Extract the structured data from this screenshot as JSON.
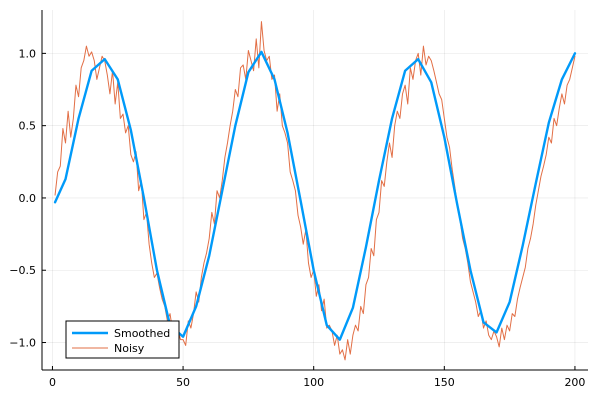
{
  "chart_data": {
    "type": "line",
    "title": "",
    "xlabel": "",
    "ylabel": "",
    "xlim": [
      -4,
      205
    ],
    "ylim": [
      -1.19,
      1.3
    ],
    "x_ticks": [
      0,
      50,
      100,
      150,
      200
    ],
    "x_tick_labels": [
      "0",
      "50",
      "100",
      "150",
      "200"
    ],
    "y_ticks": [
      -1.0,
      -0.5,
      0.0,
      0.5,
      1.0
    ],
    "y_tick_labels": [
      "−1.0",
      "−0.5",
      "0.0",
      "0.5",
      "1.0"
    ],
    "grid": true,
    "legend_position": "bottom-left",
    "series": [
      {
        "name": "Smoothed",
        "color": "#009af9",
        "x": [
          1,
          5,
          10,
          15,
          20,
          25,
          30,
          35,
          40,
          45,
          50,
          55,
          60,
          65,
          70,
          75,
          80,
          85,
          90,
          95,
          100,
          105,
          110,
          115,
          120,
          125,
          130,
          135,
          140,
          145,
          150,
          155,
          160,
          165,
          170,
          175,
          180,
          185,
          190,
          195,
          200
        ],
        "y": [
          -0.03,
          0.13,
          0.55,
          0.88,
          0.96,
          0.82,
          0.47,
          0.0,
          -0.5,
          -0.88,
          -0.96,
          -0.75,
          -0.4,
          0.05,
          0.5,
          0.87,
          1.01,
          0.82,
          0.45,
          -0.02,
          -0.5,
          -0.88,
          -0.98,
          -0.76,
          -0.34,
          0.12,
          0.55,
          0.88,
          0.96,
          0.8,
          0.42,
          -0.05,
          -0.5,
          -0.86,
          -0.93,
          -0.72,
          -0.33,
          0.1,
          0.52,
          0.82,
          1.0
        ]
      },
      {
        "name": "Noisy",
        "color": "#e26f46",
        "x": [
          1,
          2,
          3,
          4,
          5,
          6,
          7,
          8,
          9,
          10,
          11,
          12,
          13,
          14,
          15,
          16,
          17,
          18,
          19,
          20,
          21,
          22,
          23,
          24,
          25,
          26,
          27,
          28,
          29,
          30,
          31,
          32,
          33,
          34,
          35,
          36,
          37,
          38,
          39,
          40,
          41,
          42,
          43,
          44,
          45,
          46,
          47,
          48,
          49,
          50,
          51,
          52,
          53,
          54,
          55,
          56,
          57,
          58,
          59,
          60,
          61,
          62,
          63,
          64,
          65,
          66,
          67,
          68,
          69,
          70,
          71,
          72,
          73,
          74,
          75,
          76,
          77,
          78,
          79,
          80,
          81,
          82,
          83,
          84,
          85,
          86,
          87,
          88,
          89,
          90,
          91,
          92,
          93,
          94,
          95,
          96,
          97,
          98,
          99,
          100,
          101,
          102,
          103,
          104,
          105,
          106,
          107,
          108,
          109,
          110,
          111,
          112,
          113,
          114,
          115,
          116,
          117,
          118,
          119,
          120,
          121,
          122,
          123,
          124,
          125,
          126,
          127,
          128,
          129,
          130,
          131,
          132,
          133,
          134,
          135,
          136,
          137,
          138,
          139,
          140,
          141,
          142,
          143,
          144,
          145,
          146,
          147,
          148,
          149,
          150,
          151,
          152,
          153,
          154,
          155,
          156,
          157,
          158,
          159,
          160,
          161,
          162,
          163,
          164,
          165,
          166,
          167,
          168,
          169,
          170,
          171,
          172,
          173,
          174,
          175,
          176,
          177,
          178,
          179,
          180,
          181,
          182,
          183,
          184,
          185,
          186,
          187,
          188,
          189,
          190,
          191,
          192,
          193,
          194,
          195,
          196,
          197,
          198,
          199,
          200
        ],
        "y": [
          0.02,
          0.18,
          0.22,
          0.48,
          0.38,
          0.6,
          0.42,
          0.55,
          0.78,
          0.7,
          0.9,
          0.95,
          1.05,
          0.98,
          1.01,
          0.95,
          0.82,
          0.9,
          0.98,
          0.95,
          0.85,
          0.72,
          0.88,
          0.65,
          0.8,
          0.55,
          0.58,
          0.45,
          0.5,
          0.3,
          0.25,
          0.32,
          0.05,
          0.12,
          -0.15,
          -0.1,
          -0.32,
          -0.45,
          -0.55,
          -0.52,
          -0.62,
          -0.7,
          -0.75,
          -0.85,
          -0.8,
          -0.92,
          -1.02,
          -0.9,
          -0.98,
          -0.98,
          -1.02,
          -0.85,
          -0.9,
          -0.8,
          -0.65,
          -0.72,
          -0.55,
          -0.45,
          -0.38,
          -0.28,
          -0.1,
          -0.18,
          0.05,
          0.0,
          0.12,
          0.28,
          0.38,
          0.5,
          0.6,
          0.75,
          0.7,
          0.9,
          0.92,
          0.82,
          1.02,
          0.95,
          0.88,
          1.1,
          0.9,
          1.22,
          1.02,
          0.95,
          0.98,
          0.82,
          0.85,
          0.6,
          0.72,
          0.5,
          0.45,
          0.38,
          0.18,
          0.12,
          0.05,
          -0.12,
          -0.2,
          -0.32,
          -0.22,
          -0.45,
          -0.55,
          -0.5,
          -0.68,
          -0.6,
          -0.78,
          -0.7,
          -0.9,
          -0.88,
          -0.92,
          -1.02,
          -0.95,
          -1.08,
          -1.05,
          -1.12,
          -0.98,
          -1.08,
          -0.95,
          -0.88,
          -0.92,
          -0.75,
          -0.8,
          -0.6,
          -0.55,
          -0.35,
          -0.4,
          -0.15,
          -0.1,
          0.12,
          0.08,
          0.25,
          0.38,
          0.28,
          0.5,
          0.6,
          0.55,
          0.72,
          0.78,
          0.65,
          0.9,
          0.82,
          0.95,
          1.0,
          0.85,
          1.05,
          0.92,
          0.98,
          0.95,
          0.88,
          0.8,
          0.72,
          0.68,
          0.55,
          0.42,
          0.35,
          0.2,
          0.08,
          -0.05,
          -0.15,
          -0.28,
          -0.35,
          -0.45,
          -0.58,
          -0.65,
          -0.72,
          -0.82,
          -0.78,
          -0.9,
          -0.85,
          -0.95,
          -0.98,
          -0.92,
          -0.96,
          -1.03,
          -0.9,
          -0.98,
          -0.88,
          -0.92,
          -0.8,
          -0.82,
          -0.7,
          -0.62,
          -0.55,
          -0.48,
          -0.35,
          -0.28,
          -0.18,
          -0.05,
          0.05,
          0.15,
          0.22,
          0.3,
          0.42,
          0.38,
          0.55,
          0.5,
          0.62,
          0.72,
          0.65,
          0.78,
          0.82,
          0.9,
          0.98
        ]
      }
    ]
  }
}
